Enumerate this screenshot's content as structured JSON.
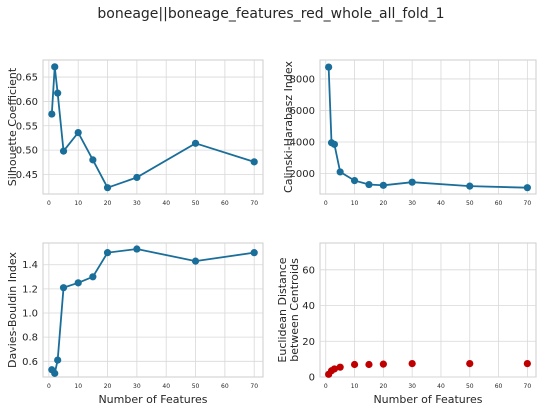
{
  "figure": {
    "title": "boneage||boneage_features_red_whole_all_fold_1"
  },
  "chart_data": [
    {
      "type": "line",
      "panel": "top-left",
      "title": "",
      "xlabel": "",
      "ylabel": "Silhouette Coefficient",
      "x": [
        1,
        2,
        3,
        5,
        10,
        15,
        20,
        30,
        50,
        70
      ],
      "series": [
        {
          "values": [
            0.574,
            0.671,
            0.617,
            0.498,
            0.536,
            0.48,
            0.423,
            0.444,
            0.514,
            0.476
          ],
          "color": "#1a6e9a"
        }
      ],
      "xlim": [
        -2,
        73
      ],
      "ylim": [
        0.41,
        0.685
      ],
      "xticks": [
        0,
        10,
        20,
        30,
        40,
        50,
        60,
        70
      ],
      "yticks": [
        0.45,
        0.5,
        0.55,
        0.6,
        0.65
      ],
      "ytick_labels": [
        "0.45",
        "0.50",
        "0.55",
        "0.60",
        "0.65"
      ],
      "grid": true
    },
    {
      "type": "line",
      "panel": "top-right",
      "title": "",
      "xlabel": "",
      "ylabel": "Calinski-Harabasz Index",
      "x": [
        1,
        2,
        3,
        5,
        10,
        15,
        20,
        30,
        50,
        70
      ],
      "series": [
        {
          "values": [
            8750,
            3950,
            3850,
            2100,
            1550,
            1300,
            1250,
            1450,
            1200,
            1100
          ],
          "color": "#1a6e9a"
        }
      ],
      "xlim": [
        -2,
        73
      ],
      "ylim": [
        700,
        9200
      ],
      "xticks": [
        0,
        10,
        20,
        30,
        40,
        50,
        60,
        70
      ],
      "yticks": [
        2000,
        4000,
        6000,
        8000
      ],
      "ytick_labels": [
        "2000",
        "4000",
        "6000",
        "8000"
      ],
      "grid": true
    },
    {
      "type": "line",
      "panel": "bottom-left",
      "title": "",
      "xlabel": "Number of Features",
      "ylabel": "Davies-Bouldin Index",
      "x": [
        1,
        2,
        3,
        5,
        10,
        15,
        20,
        30,
        50,
        70
      ],
      "series": [
        {
          "values": [
            0.53,
            0.5,
            0.61,
            1.21,
            1.25,
            1.3,
            1.5,
            1.53,
            1.43,
            1.5
          ],
          "color": "#1a6e9a"
        }
      ],
      "xlim": [
        -2,
        73
      ],
      "ylim": [
        0.47,
        1.58
      ],
      "xticks": [
        0,
        10,
        20,
        30,
        40,
        50,
        60,
        70
      ],
      "yticks": [
        0.6,
        0.8,
        1.0,
        1.2,
        1.4
      ],
      "ytick_labels": [
        "0.6",
        "0.8",
        "1.0",
        "1.2",
        "1.4"
      ],
      "grid": true
    },
    {
      "type": "scatter",
      "panel": "bottom-right",
      "title": "",
      "xlabel": "Number of Features",
      "ylabel": "Euclidean Distance between Centroids",
      "ylabel_lines": [
        "Euclidean Distance",
        "between Centroids"
      ],
      "x": [
        1,
        2,
        3,
        5,
        10,
        15,
        20,
        30,
        50,
        70
      ],
      "series": [
        {
          "values": [
            1.5,
            3.5,
            4.5,
            5.5,
            7,
            7,
            7.2,
            7.5,
            7.5,
            7.5
          ],
          "color": "#c00000"
        }
      ],
      "xlim": [
        -2,
        73
      ],
      "ylim": [
        0,
        75
      ],
      "xticks": [
        0,
        10,
        20,
        30,
        40,
        50,
        60,
        70
      ],
      "yticks": [
        0,
        20,
        40,
        60
      ],
      "ytick_labels": [
        "0",
        "20",
        "40",
        "60"
      ],
      "grid": true
    }
  ]
}
